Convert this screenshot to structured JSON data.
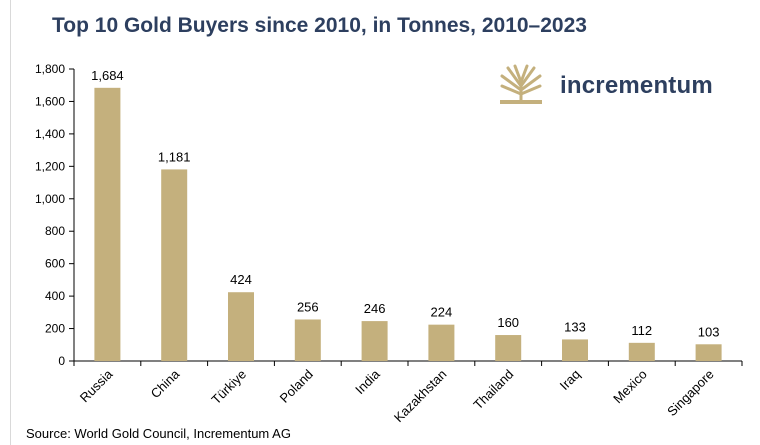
{
  "chart_data": {
    "type": "bar",
    "title": "Top 10 Gold Buyers since 2010, in Tonnes, 2010–2023",
    "categories": [
      "Russia",
      "China",
      "Türkiye",
      "Poland",
      "India",
      "Kazakhstan",
      "Thailand",
      "Iraq",
      "Mexico",
      "Singapore"
    ],
    "values": [
      1684,
      1181,
      424,
      256,
      246,
      224,
      160,
      133,
      112,
      103
    ],
    "value_labels": [
      "1,684",
      "1,181",
      "424",
      "256",
      "246",
      "224",
      "160",
      "133",
      "112",
      "103"
    ],
    "xlabel": "",
    "ylabel": "",
    "ylim": [
      0,
      1800
    ],
    "yticks": [
      0,
      200,
      400,
      600,
      800,
      1000,
      1200,
      1400,
      1600,
      1800
    ],
    "ytick_labels": [
      "0",
      "200",
      "400",
      "600",
      "800",
      "1,000",
      "1,200",
      "1,400",
      "1,600",
      "1,800"
    ],
    "grid": false,
    "bar_color": "#c4b07d"
  },
  "branding": {
    "name": "incrementum",
    "mark_color": "#c4b07d",
    "name_color": "#2d3f5f"
  },
  "source": "Source: World Gold Council, Incrementum AG"
}
